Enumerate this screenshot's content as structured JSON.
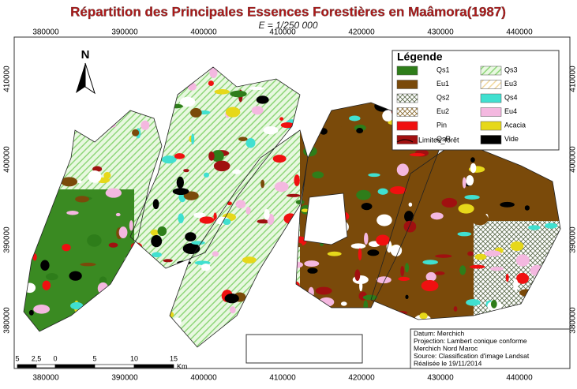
{
  "header": {
    "title": "Répartition des Principales Essences Forestières en Maâmora(1987)",
    "scale": "E = 1/250 000"
  },
  "x_labels": [
    380000,
    390000,
    400000,
    410000,
    420000,
    430000,
    440000
  ],
  "y_labels": [
    410000,
    400000,
    390000,
    380000
  ],
  "north": "N",
  "legend": {
    "title": "Légende",
    "items": [
      {
        "label": "Qs1",
        "color": "#2e7d1a",
        "pattern": "solid"
      },
      {
        "label": "Qs3",
        "color": "#9ee08a",
        "pattern": "stripe"
      },
      {
        "label": "Eu1",
        "color": "#7a4a0a",
        "pattern": "solid"
      },
      {
        "label": "Eu3",
        "color": "#f2d9a0",
        "pattern": "stripe"
      },
      {
        "label": "Qs2",
        "color": "#5a6a4a",
        "pattern": "cross"
      },
      {
        "label": "Qs4",
        "color": "#40e0d0",
        "pattern": "solid"
      },
      {
        "label": "Eu2",
        "color": "#8a6a30",
        "pattern": "cross"
      },
      {
        "label": "Eu4",
        "color": "#f4b8e0",
        "pattern": "solid"
      },
      {
        "label": "Pin",
        "color": "#f01010",
        "pattern": "solid"
      },
      {
        "label": "Acacia",
        "color": "#e6d81a",
        "pattern": "solid"
      },
      {
        "label": "QsR",
        "color": "#a01010",
        "pattern": "solid"
      },
      {
        "label": "Vide",
        "color": "#000000",
        "pattern": "solid"
      }
    ],
    "boundary": "Limites_forêt"
  },
  "scalebar": {
    "labels": [
      "5",
      "2,5",
      "0",
      "5",
      "10",
      "15"
    ],
    "unit": "Km"
  },
  "info": [
    "Datum: Merchich",
    "Projection: Lambert conique conforme",
    "Merchich Nord Maroc",
    "Source: Classification d'image Landsat",
    "Réalisée le 19/11/2014"
  ]
}
